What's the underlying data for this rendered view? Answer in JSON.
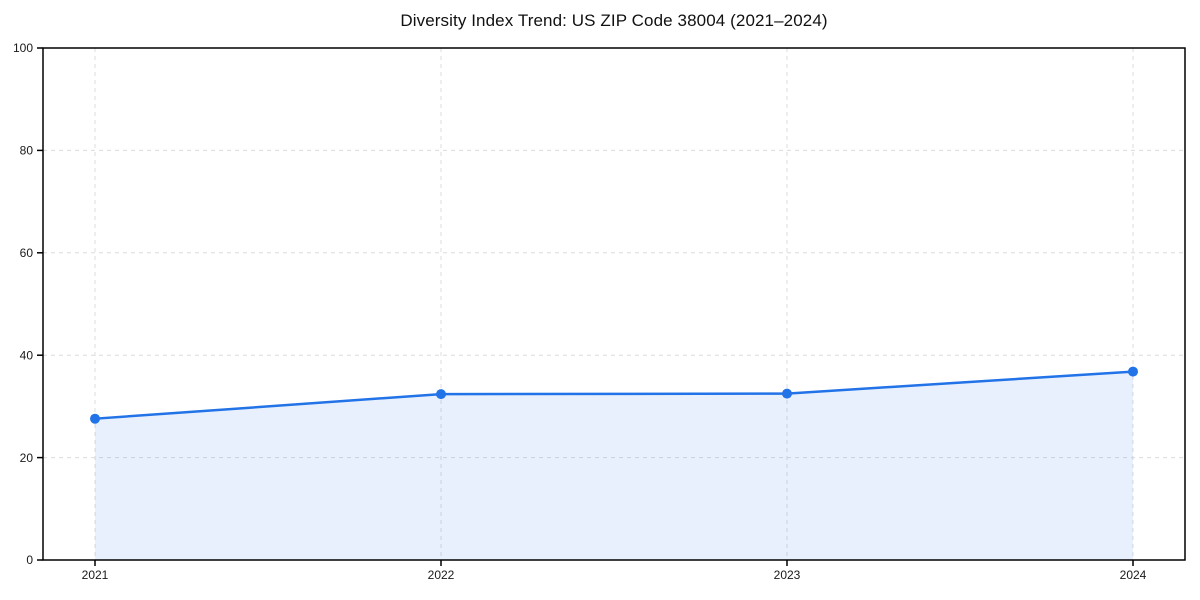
{
  "page": {
    "background": "#ffffff"
  },
  "chart_data": {
    "type": "area",
    "title": "Diversity Index Trend: US ZIP Code 38004 (2021–2024)",
    "categories": [
      "2021",
      "2022",
      "2023",
      "2024"
    ],
    "series": [
      {
        "name": "Diversity Index",
        "values": [
          27.6,
          32.4,
          32.5,
          36.8
        ]
      }
    ],
    "xlabel": "",
    "ylabel": "",
    "ylim": [
      0,
      100
    ],
    "yticks": [
      0,
      20,
      40,
      60,
      80,
      100
    ],
    "grid": true,
    "grid_style": "dashed",
    "legend": false,
    "colors": {
      "line": "#2272e8",
      "marker": "#2272e8",
      "fill": "rgba(34,114,232,0.11)",
      "grid": "#dcdcdc",
      "axis": "#000000",
      "tick_text": "#1a1a1a",
      "title_text": "#111111"
    }
  }
}
